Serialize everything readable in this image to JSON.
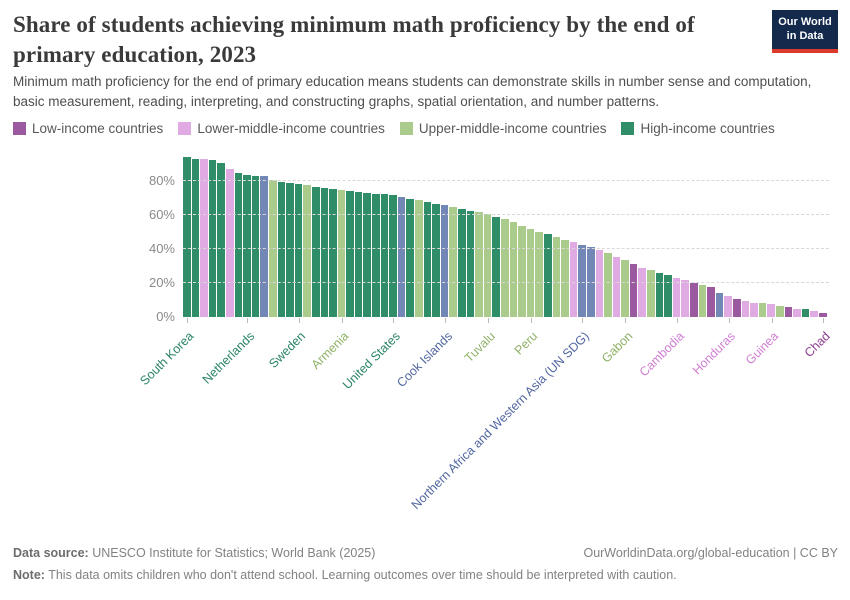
{
  "header": {
    "title": "Share of students achieving minimum math proficiency by the end of primary education, 2023",
    "subtitle": "Minimum math proficiency for the end of primary education means students can demonstrate skills in number sense and computation, basic measurement, reading, interpreting, and constructing graphs, spatial orientation, and number patterns.",
    "logo": {
      "line1": "Our World",
      "line2": "in Data",
      "bg": "#132A4D",
      "accent": "#DC3A2D"
    }
  },
  "legend": {
    "items": [
      {
        "label": "Low-income countries",
        "group": "low"
      },
      {
        "label": "Lower-middle-income countries",
        "group": "lower_middle"
      },
      {
        "label": "Upper-middle-income countries",
        "group": "upper_middle"
      },
      {
        "label": "High-income countries",
        "group": "high"
      }
    ]
  },
  "chart_data": {
    "type": "bar",
    "title": "Share of students achieving minimum math proficiency by the end of primary education, 2023",
    "unit": "%",
    "ylim": [
      0,
      100
    ],
    "y_ticks": [
      0,
      20,
      40,
      60,
      80
    ],
    "grid": true,
    "legend_position": "top",
    "groups": {
      "low": {
        "color": "#9B59A0",
        "label_color": "#8A3F8F"
      },
      "lower_middle": {
        "color": "#E0ABE2",
        "label_color": "#D07FD3"
      },
      "upper_middle": {
        "color": "#ABCB8D",
        "label_color": "#8FB167"
      },
      "high": {
        "color": "#2F8E68",
        "label_color": "#2C8465"
      },
      "other": {
        "color": "#7287B5",
        "label_color": "#50669F"
      }
    },
    "bars": [
      {
        "label": "South Korea",
        "value": 94,
        "group": "high"
      },
      {
        "value": 93,
        "group": "high"
      },
      {
        "value": 92.5,
        "group": "lower_middle"
      },
      {
        "value": 92,
        "group": "high"
      },
      {
        "value": 90.5,
        "group": "high"
      },
      {
        "value": 87,
        "group": "lower_middle"
      },
      {
        "value": 84.5,
        "group": "high"
      },
      {
        "label": "Netherlands",
        "value": 83.5,
        "group": "high"
      },
      {
        "value": 83,
        "group": "high"
      },
      {
        "value": 82.5,
        "group": "other"
      },
      {
        "value": 80.5,
        "group": "upper_middle"
      },
      {
        "value": 79.5,
        "group": "high"
      },
      {
        "value": 78.5,
        "group": "high"
      },
      {
        "label": "Sweden",
        "value": 78,
        "group": "high"
      },
      {
        "value": 77.5,
        "group": "upper_middle"
      },
      {
        "value": 76.5,
        "group": "high"
      },
      {
        "value": 76,
        "group": "high"
      },
      {
        "value": 75,
        "group": "high"
      },
      {
        "label": "Armenia",
        "value": 74.5,
        "group": "upper_middle"
      },
      {
        "value": 74,
        "group": "high"
      },
      {
        "value": 73.5,
        "group": "high"
      },
      {
        "value": 73,
        "group": "high"
      },
      {
        "value": 72.5,
        "group": "high"
      },
      {
        "value": 72,
        "group": "high"
      },
      {
        "label": "United States",
        "value": 71.5,
        "group": "high"
      },
      {
        "value": 70.5,
        "group": "other"
      },
      {
        "value": 69.5,
        "group": "high"
      },
      {
        "value": 68.5,
        "group": "upper_middle"
      },
      {
        "value": 67.5,
        "group": "high"
      },
      {
        "value": 66.5,
        "group": "high"
      },
      {
        "label": "Cook Islands",
        "value": 65.5,
        "group": "other"
      },
      {
        "value": 64.5,
        "group": "upper_middle"
      },
      {
        "value": 63.5,
        "group": "high"
      },
      {
        "value": 62.5,
        "group": "high"
      },
      {
        "value": 61.5,
        "group": "upper_middle"
      },
      {
        "label": "Tuvalu",
        "value": 60.5,
        "group": "upper_middle"
      },
      {
        "value": 59,
        "group": "high"
      },
      {
        "value": 57.5,
        "group": "upper_middle"
      },
      {
        "value": 55.5,
        "group": "upper_middle"
      },
      {
        "value": 53.5,
        "group": "upper_middle"
      },
      {
        "label": "Peru",
        "value": 51.5,
        "group": "upper_middle"
      },
      {
        "value": 50,
        "group": "upper_middle"
      },
      {
        "value": 48.5,
        "group": "high"
      },
      {
        "value": 47,
        "group": "upper_middle"
      },
      {
        "value": 45.5,
        "group": "upper_middle"
      },
      {
        "value": 44,
        "group": "lower_middle"
      },
      {
        "label": "Northern Africa and Western Asia (UN SDG)",
        "value": 42.5,
        "group": "other"
      },
      {
        "value": 41,
        "group": "other"
      },
      {
        "value": 39.5,
        "group": "lower_middle"
      },
      {
        "value": 37.5,
        "group": "upper_middle"
      },
      {
        "value": 35.5,
        "group": "lower_middle"
      },
      {
        "label": "Gabon",
        "value": 33.5,
        "group": "upper_middle"
      },
      {
        "value": 31,
        "group": "low"
      },
      {
        "value": 29,
        "group": "lower_middle"
      },
      {
        "value": 27.5,
        "group": "upper_middle"
      },
      {
        "value": 26,
        "group": "high"
      },
      {
        "value": 24.5,
        "group": "high"
      },
      {
        "label": "Cambodia",
        "value": 23,
        "group": "lower_middle"
      },
      {
        "value": 21.5,
        "group": "lower_middle"
      },
      {
        "value": 20,
        "group": "low"
      },
      {
        "value": 19,
        "group": "upper_middle"
      },
      {
        "value": 17.5,
        "group": "low"
      },
      {
        "value": 14,
        "group": "other"
      },
      {
        "label": "Honduras",
        "value": 12.5,
        "group": "lower_middle"
      },
      {
        "value": 10.5,
        "group": "low"
      },
      {
        "value": 9.5,
        "group": "lower_middle"
      },
      {
        "value": 8.5,
        "group": "lower_middle"
      },
      {
        "value": 8,
        "group": "upper_middle"
      },
      {
        "label": "Guinea",
        "value": 7.5,
        "group": "lower_middle"
      },
      {
        "value": 6.5,
        "group": "upper_middle"
      },
      {
        "value": 6,
        "group": "low"
      },
      {
        "value": 5,
        "group": "lower_middle"
      },
      {
        "value": 4.5,
        "group": "high"
      },
      {
        "value": 3.5,
        "group": "lower_middle"
      },
      {
        "label": "Chad",
        "value": 2.5,
        "group": "low"
      }
    ]
  },
  "footer": {
    "source_label": "Data source:",
    "source_text": " UNESCO Institute for Statistics; World Bank (2025)",
    "credit": "OurWorldinData.org/global-education | CC BY",
    "note_label": "Note:",
    "note_text": " This data omits children who don't attend school. Learning outcomes over time should be interpreted with caution."
  }
}
